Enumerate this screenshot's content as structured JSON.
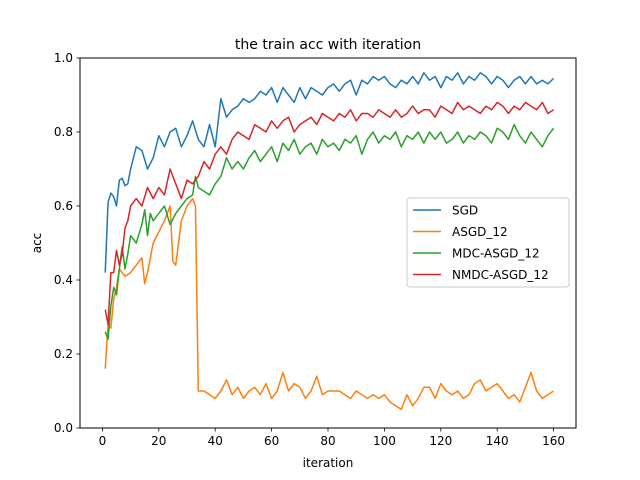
{
  "chart_data": {
    "type": "line",
    "title": "the train acc with iteration",
    "xlabel": "iteration",
    "ylabel": "acc",
    "xlim": [
      -7.95,
      167.95
    ],
    "ylim": [
      0.0,
      1.0
    ],
    "xticks": [
      0,
      20,
      40,
      60,
      80,
      100,
      120,
      140,
      160
    ],
    "yticks": [
      0.0,
      0.2,
      0.4,
      0.6,
      0.8,
      1.0
    ],
    "xtick_labels": [
      "0",
      "20",
      "40",
      "60",
      "80",
      "100",
      "120",
      "140",
      "160"
    ],
    "ytick_labels": [
      "0.0",
      "0.2",
      "0.4",
      "0.6",
      "0.8",
      "1.0"
    ],
    "grid": false,
    "legend_position": "center-right",
    "series": [
      {
        "name": "SGD",
        "color": "#1f77b4",
        "x": [
          1,
          2,
          3,
          4,
          5,
          6,
          7,
          8,
          9,
          10,
          12,
          14,
          16,
          18,
          20,
          22,
          24,
          26,
          28,
          30,
          32,
          34,
          36,
          38,
          40,
          42,
          44,
          46,
          48,
          50,
          52,
          54,
          56,
          58,
          60,
          62,
          64,
          66,
          68,
          70,
          72,
          74,
          76,
          78,
          80,
          82,
          84,
          86,
          88,
          90,
          92,
          94,
          96,
          98,
          100,
          102,
          104,
          106,
          108,
          110,
          112,
          114,
          116,
          118,
          120,
          122,
          124,
          126,
          128,
          130,
          132,
          134,
          136,
          138,
          140,
          142,
          144,
          146,
          148,
          150,
          152,
          154,
          156,
          158,
          160
        ],
        "values": [
          0.42,
          0.61,
          0.635,
          0.625,
          0.6,
          0.67,
          0.675,
          0.655,
          0.66,
          0.7,
          0.76,
          0.75,
          0.7,
          0.73,
          0.79,
          0.76,
          0.8,
          0.81,
          0.76,
          0.79,
          0.83,
          0.78,
          0.76,
          0.82,
          0.76,
          0.89,
          0.84,
          0.86,
          0.87,
          0.89,
          0.88,
          0.89,
          0.91,
          0.9,
          0.92,
          0.88,
          0.92,
          0.9,
          0.88,
          0.92,
          0.89,
          0.92,
          0.91,
          0.9,
          0.92,
          0.93,
          0.91,
          0.93,
          0.94,
          0.9,
          0.94,
          0.93,
          0.95,
          0.94,
          0.95,
          0.93,
          0.92,
          0.94,
          0.93,
          0.95,
          0.93,
          0.96,
          0.94,
          0.95,
          0.92,
          0.95,
          0.94,
          0.96,
          0.93,
          0.95,
          0.94,
          0.96,
          0.95,
          0.93,
          0.95,
          0.94,
          0.92,
          0.94,
          0.95,
          0.93,
          0.95,
          0.93,
          0.94,
          0.93,
          0.945
        ]
      },
      {
        "name": "ASGD_12",
        "color": "#ff7f0e",
        "x": [
          1,
          2,
          3,
          4,
          5,
          6,
          8,
          10,
          12,
          14,
          15,
          16,
          18,
          20,
          22,
          24,
          25,
          26,
          28,
          30,
          32,
          33,
          34,
          36,
          38,
          40,
          42,
          44,
          46,
          48,
          50,
          52,
          54,
          56,
          58,
          60,
          62,
          64,
          66,
          68,
          70,
          72,
          74,
          76,
          78,
          80,
          82,
          84,
          86,
          88,
          90,
          92,
          94,
          96,
          98,
          100,
          102,
          104,
          106,
          108,
          110,
          112,
          114,
          116,
          118,
          120,
          122,
          124,
          126,
          128,
          130,
          132,
          134,
          136,
          138,
          140,
          142,
          144,
          146,
          148,
          150,
          152,
          154,
          156,
          158,
          160
        ],
        "values": [
          0.16,
          0.28,
          0.27,
          0.35,
          0.38,
          0.43,
          0.41,
          0.42,
          0.44,
          0.46,
          0.39,
          0.42,
          0.5,
          0.53,
          0.56,
          0.6,
          0.45,
          0.44,
          0.56,
          0.6,
          0.62,
          0.6,
          0.1,
          0.1,
          0.09,
          0.08,
          0.1,
          0.13,
          0.09,
          0.11,
          0.08,
          0.1,
          0.11,
          0.09,
          0.12,
          0.08,
          0.1,
          0.15,
          0.1,
          0.12,
          0.11,
          0.08,
          0.1,
          0.14,
          0.09,
          0.1,
          0.1,
          0.1,
          0.09,
          0.08,
          0.1,
          0.09,
          0.08,
          0.09,
          0.08,
          0.09,
          0.07,
          0.06,
          0.05,
          0.09,
          0.06,
          0.08,
          0.11,
          0.11,
          0.08,
          0.12,
          0.1,
          0.09,
          0.1,
          0.08,
          0.09,
          0.12,
          0.13,
          0.1,
          0.11,
          0.12,
          0.1,
          0.08,
          0.09,
          0.07,
          0.11,
          0.15,
          0.1,
          0.08,
          0.09,
          0.1
        ]
      },
      {
        "name": "MDC-ASGD_12",
        "color": "#2ca02c",
        "x": [
          1,
          2,
          3,
          4,
          5,
          6,
          7,
          8,
          9,
          10,
          12,
          14,
          15,
          16,
          17,
          18,
          20,
          22,
          24,
          26,
          28,
          30,
          32,
          33,
          34,
          36,
          38,
          40,
          42,
          44,
          46,
          48,
          50,
          52,
          54,
          56,
          58,
          60,
          62,
          64,
          66,
          68,
          70,
          72,
          74,
          76,
          78,
          80,
          82,
          84,
          86,
          88,
          90,
          92,
          94,
          96,
          98,
          100,
          102,
          104,
          106,
          108,
          110,
          112,
          114,
          116,
          118,
          120,
          122,
          124,
          126,
          128,
          130,
          132,
          134,
          136,
          138,
          140,
          142,
          144,
          146,
          148,
          150,
          152,
          154,
          156,
          158,
          160
        ],
        "values": [
          0.26,
          0.24,
          0.33,
          0.38,
          0.36,
          0.43,
          0.49,
          0.43,
          0.47,
          0.52,
          0.5,
          0.55,
          0.59,
          0.52,
          0.58,
          0.56,
          0.58,
          0.6,
          0.55,
          0.58,
          0.6,
          0.62,
          0.63,
          0.68,
          0.65,
          0.64,
          0.63,
          0.66,
          0.68,
          0.73,
          0.7,
          0.72,
          0.7,
          0.73,
          0.75,
          0.72,
          0.74,
          0.76,
          0.72,
          0.77,
          0.75,
          0.78,
          0.74,
          0.76,
          0.77,
          0.74,
          0.78,
          0.76,
          0.77,
          0.75,
          0.78,
          0.77,
          0.79,
          0.74,
          0.78,
          0.8,
          0.77,
          0.79,
          0.78,
          0.8,
          0.76,
          0.79,
          0.78,
          0.8,
          0.77,
          0.8,
          0.78,
          0.8,
          0.77,
          0.78,
          0.8,
          0.77,
          0.79,
          0.78,
          0.8,
          0.79,
          0.77,
          0.81,
          0.8,
          0.78,
          0.82,
          0.79,
          0.77,
          0.8,
          0.78,
          0.76,
          0.79,
          0.81
        ]
      },
      {
        "name": "NMDC-ASGD_12",
        "color": "#d62728",
        "x": [
          1,
          2,
          3,
          4,
          5,
          6,
          7,
          8,
          9,
          10,
          12,
          14,
          16,
          18,
          20,
          22,
          24,
          26,
          28,
          30,
          32,
          34,
          36,
          38,
          40,
          42,
          44,
          46,
          48,
          50,
          52,
          54,
          56,
          58,
          60,
          62,
          64,
          66,
          68,
          70,
          72,
          74,
          76,
          78,
          80,
          82,
          84,
          86,
          88,
          90,
          92,
          94,
          96,
          98,
          100,
          102,
          104,
          106,
          108,
          110,
          112,
          114,
          116,
          118,
          120,
          122,
          124,
          126,
          128,
          130,
          132,
          134,
          136,
          138,
          140,
          142,
          144,
          146,
          148,
          150,
          152,
          154,
          156,
          158,
          160
        ],
        "values": [
          0.32,
          0.28,
          0.42,
          0.42,
          0.48,
          0.44,
          0.47,
          0.54,
          0.56,
          0.6,
          0.62,
          0.6,
          0.65,
          0.62,
          0.65,
          0.63,
          0.7,
          0.66,
          0.62,
          0.67,
          0.66,
          0.68,
          0.72,
          0.7,
          0.74,
          0.76,
          0.74,
          0.78,
          0.8,
          0.79,
          0.78,
          0.82,
          0.81,
          0.8,
          0.83,
          0.81,
          0.83,
          0.84,
          0.8,
          0.82,
          0.83,
          0.84,
          0.82,
          0.85,
          0.84,
          0.83,
          0.85,
          0.84,
          0.86,
          0.83,
          0.85,
          0.85,
          0.84,
          0.86,
          0.85,
          0.84,
          0.86,
          0.84,
          0.85,
          0.87,
          0.85,
          0.86,
          0.86,
          0.84,
          0.87,
          0.86,
          0.85,
          0.88,
          0.86,
          0.87,
          0.86,
          0.85,
          0.87,
          0.86,
          0.88,
          0.87,
          0.85,
          0.87,
          0.86,
          0.88,
          0.87,
          0.86,
          0.88,
          0.85,
          0.86
        ]
      }
    ]
  }
}
